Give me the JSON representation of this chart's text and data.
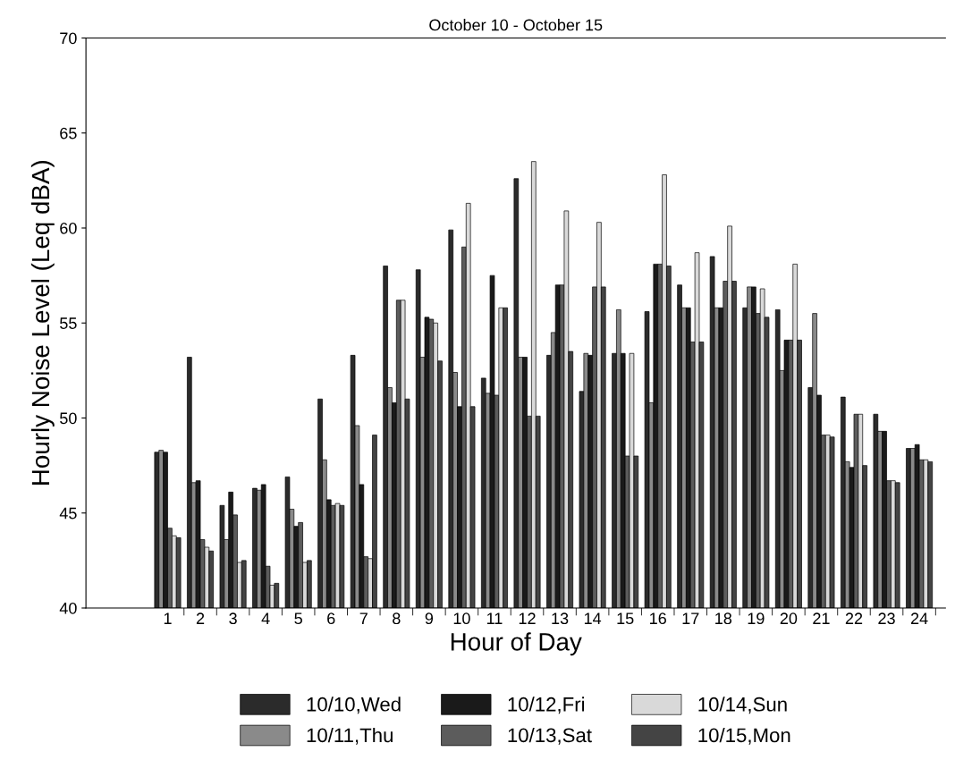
{
  "chart_data": {
    "type": "bar",
    "title": "October 10 - October 15",
    "xlabel": "Hour of Day",
    "ylabel": "Hourly Noise Level (Leq dBA)",
    "categories": [
      "1",
      "2",
      "3",
      "4",
      "5",
      "6",
      "7",
      "8",
      "9",
      "10",
      "11",
      "12",
      "13",
      "14",
      "15",
      "16",
      "17",
      "18",
      "19",
      "20",
      "21",
      "22",
      "23",
      "24"
    ],
    "ylim": [
      40,
      70
    ],
    "yticks": [
      40,
      45,
      50,
      55,
      60,
      65,
      70
    ],
    "grid": false,
    "legend": "bottom",
    "series": [
      {
        "name": "10/10,Wed",
        "color": "#2b2b2b",
        "values": [
          48.2,
          53.2,
          45.4,
          46.3,
          46.9,
          51.0,
          53.3,
          58.0,
          57.8,
          59.9,
          52.1,
          62.6,
          53.3,
          51.4,
          53.4,
          55.6,
          57.0,
          58.5,
          55.8,
          55.7,
          51.6,
          51.1,
          50.2,
          48.4
        ]
      },
      {
        "name": "10/11,Thu",
        "color": "#8a8a8a",
        "values": [
          48.3,
          46.6,
          43.6,
          46.2,
          45.2,
          47.8,
          49.6,
          51.6,
          53.2,
          52.4,
          51.3,
          53.2,
          54.5,
          53.4,
          55.7,
          50.8,
          55.8,
          55.8,
          56.9,
          52.5,
          55.5,
          47.7,
          49.3,
          48.4
        ]
      },
      {
        "name": "10/12,Fri",
        "color": "#1a1a1a",
        "values": [
          48.2,
          46.7,
          46.1,
          46.5,
          44.3,
          45.7,
          46.5,
          50.8,
          55.3,
          50.6,
          57.5,
          53.2,
          57.0,
          53.3,
          53.4,
          58.1,
          55.8,
          55.8,
          56.9,
          54.1,
          51.2,
          47.4,
          49.3,
          48.6
        ]
      },
      {
        "name": "10/13,Sat",
        "color": "#5c5c5c",
        "values": [
          44.2,
          43.6,
          44.9,
          42.2,
          44.5,
          45.4,
          42.7,
          56.2,
          55.2,
          59.0,
          51.2,
          50.1,
          57.0,
          56.9,
          48.0,
          58.1,
          54.0,
          57.2,
          55.5,
          54.1,
          49.1,
          50.2,
          46.7,
          47.8
        ]
      },
      {
        "name": "10/14,Sun",
        "color": "#d9d9d9",
        "values": [
          43.8,
          43.2,
          42.4,
          41.2,
          42.4,
          45.5,
          42.6,
          56.2,
          55.0,
          61.3,
          55.8,
          63.5,
          60.9,
          60.3,
          53.4,
          62.8,
          58.7,
          60.1,
          56.8,
          58.1,
          49.1,
          50.2,
          46.7,
          47.8
        ]
      },
      {
        "name": "10/15,Mon",
        "color": "#444444",
        "values": [
          43.7,
          43.0,
          42.5,
          41.3,
          42.5,
          45.4,
          49.1,
          51.0,
          53.0,
          50.6,
          55.8,
          50.1,
          53.5,
          56.9,
          48.0,
          58.0,
          54.0,
          57.2,
          55.3,
          54.1,
          49.0,
          47.5,
          46.6,
          47.7
        ]
      }
    ]
  }
}
